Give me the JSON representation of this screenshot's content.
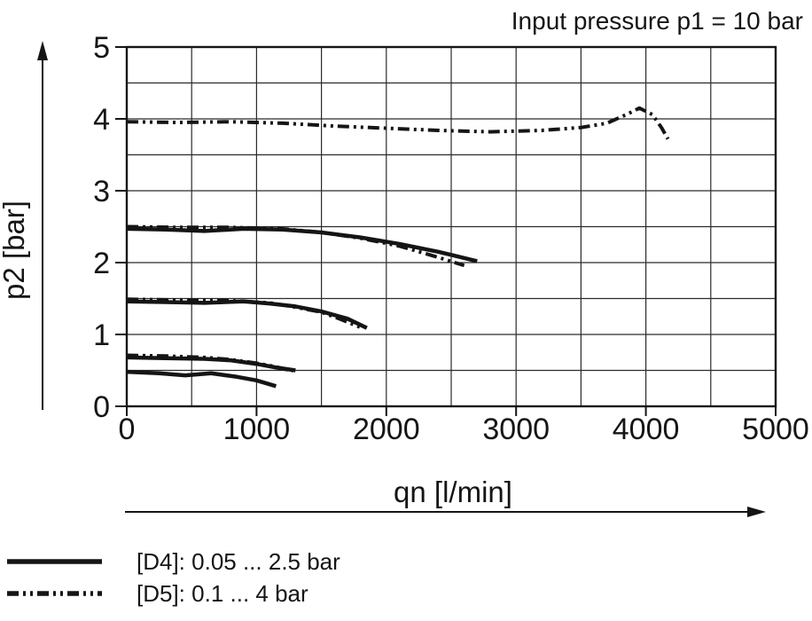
{
  "header": {
    "title": "Input pressure p1 = 10 bar"
  },
  "colors": {
    "ink": "#151515",
    "grid": "#2b2b2b",
    "background": "#ffffff"
  },
  "chart_data": {
    "type": "line",
    "title": "Input pressure p1 = 10 bar",
    "xlabel": "qn [l/min]",
    "ylabel": "p2 [bar]",
    "xlim": [
      0,
      5000
    ],
    "ylim": [
      0,
      5
    ],
    "x_ticks": [
      0,
      1000,
      2000,
      3000,
      4000,
      5000
    ],
    "y_ticks": [
      0,
      1,
      2,
      3,
      4,
      5
    ],
    "x_grid_step": 500,
    "y_grid_step": 0.5,
    "grid": true,
    "legend_position": "bottom-left",
    "series": [
      {
        "name": "[D4]: 0.05 ... 2.5 bar",
        "style": "solid",
        "curves": [
          [
            [
              0,
              2.47
            ],
            [
              300,
              2.46
            ],
            [
              600,
              2.44
            ],
            [
              900,
              2.47
            ],
            [
              1200,
              2.46
            ],
            [
              1500,
              2.42
            ],
            [
              1800,
              2.35
            ],
            [
              2100,
              2.26
            ],
            [
              2400,
              2.15
            ],
            [
              2700,
              2.02
            ]
          ],
          [
            [
              0,
              1.46
            ],
            [
              300,
              1.45
            ],
            [
              600,
              1.44
            ],
            [
              900,
              1.46
            ],
            [
              1100,
              1.43
            ],
            [
              1300,
              1.39
            ],
            [
              1500,
              1.32
            ],
            [
              1700,
              1.22
            ],
            [
              1850,
              1.09
            ]
          ],
          [
            [
              0,
              0.68
            ],
            [
              300,
              0.67
            ],
            [
              600,
              0.66
            ],
            [
              800,
              0.64
            ],
            [
              1000,
              0.59
            ],
            [
              1150,
              0.54
            ],
            [
              1300,
              0.5
            ]
          ],
          [
            [
              0,
              0.48
            ],
            [
              250,
              0.46
            ],
            [
              450,
              0.43
            ],
            [
              650,
              0.46
            ],
            [
              850,
              0.41
            ],
            [
              1000,
              0.36
            ],
            [
              1150,
              0.28
            ]
          ]
        ]
      },
      {
        "name": "[D5]: 0.1 ... 4 bar",
        "style": "dash-dot-dot",
        "curves": [
          [
            [
              0,
              3.96
            ],
            [
              400,
              3.95
            ],
            [
              800,
              3.96
            ],
            [
              1200,
              3.94
            ],
            [
              1600,
              3.9
            ],
            [
              2000,
              3.87
            ],
            [
              2400,
              3.84
            ],
            [
              2800,
              3.82
            ],
            [
              3200,
              3.84
            ],
            [
              3500,
              3.88
            ],
            [
              3700,
              3.94
            ],
            [
              3850,
              4.06
            ],
            [
              3950,
              4.15
            ],
            [
              4050,
              4.06
            ],
            [
              4120,
              3.88
            ],
            [
              4170,
              3.72
            ]
          ],
          [
            [
              0,
              2.5
            ],
            [
              400,
              2.49
            ],
            [
              800,
              2.49
            ],
            [
              1200,
              2.47
            ],
            [
              1500,
              2.42
            ],
            [
              1800,
              2.34
            ],
            [
              2100,
              2.23
            ],
            [
              2350,
              2.1
            ],
            [
              2600,
              1.96
            ]
          ],
          [
            [
              0,
              1.49
            ],
            [
              400,
              1.48
            ],
            [
              800,
              1.47
            ],
            [
              1100,
              1.44
            ],
            [
              1300,
              1.38
            ],
            [
              1500,
              1.31
            ],
            [
              1650,
              1.21
            ],
            [
              1800,
              1.1
            ]
          ],
          [
            [
              0,
              0.71
            ],
            [
              300,
              0.7
            ],
            [
              600,
              0.68
            ],
            [
              800,
              0.65
            ],
            [
              1000,
              0.6
            ],
            [
              1150,
              0.55
            ],
            [
              1280,
              0.49
            ]
          ]
        ]
      }
    ]
  }
}
